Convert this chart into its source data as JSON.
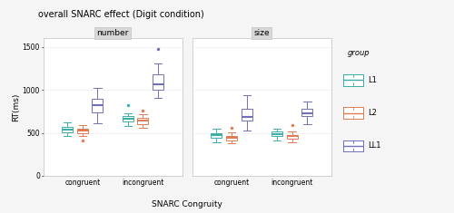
{
  "title": "overall SNARC effect (Digit condition)",
  "xlabel": "SNARC Congruity",
  "ylabel": "RT(ms)",
  "facets": [
    "number",
    "size"
  ],
  "x_groups": [
    "congruent",
    "incongruent"
  ],
  "groups": [
    "L1",
    "L2",
    "LL1"
  ],
  "colors": {
    "L1": "#3dada8",
    "L2": "#e07b54",
    "LL1": "#7070b8"
  },
  "ylim": [
    0,
    1600
  ],
  "yticks": [
    0,
    500,
    1000,
    1500
  ],
  "box_data": {
    "number": {
      "congruent": {
        "L1": {
          "q1": 505,
          "median": 535,
          "q3": 565,
          "whislo": 460,
          "whishi": 625,
          "fliers": []
        },
        "L2": {
          "q1": 495,
          "median": 525,
          "q3": 550,
          "whislo": 465,
          "whishi": 590,
          "fliers": [
            415
          ]
        },
        "LL1": {
          "q1": 735,
          "median": 820,
          "q3": 895,
          "whislo": 615,
          "whishi": 1020,
          "fliers": []
        }
      },
      "incongruent": {
        "L1": {
          "q1": 630,
          "median": 660,
          "q3": 695,
          "whislo": 575,
          "whishi": 730,
          "fliers": [
            820
          ]
        },
        "L2": {
          "q1": 605,
          "median": 645,
          "q3": 678,
          "whislo": 555,
          "whishi": 720,
          "fliers": [
            758
          ]
        },
        "LL1": {
          "q1": 1000,
          "median": 1070,
          "q3": 1185,
          "whislo": 910,
          "whishi": 1305,
          "fliers": [
            1480
          ]
        }
      }
    },
    "size": {
      "congruent": {
        "L1": {
          "q1": 445,
          "median": 475,
          "q3": 500,
          "whislo": 390,
          "whishi": 545,
          "fliers": []
        },
        "L2": {
          "q1": 415,
          "median": 445,
          "q3": 468,
          "whislo": 375,
          "whishi": 505,
          "fliers": [
            555
          ]
        },
        "LL1": {
          "q1": 645,
          "median": 685,
          "q3": 775,
          "whislo": 530,
          "whishi": 940,
          "fliers": []
        }
      },
      "incongruent": {
        "L1": {
          "q1": 458,
          "median": 488,
          "q3": 512,
          "whislo": 412,
          "whishi": 552,
          "fliers": []
        },
        "L2": {
          "q1": 432,
          "median": 458,
          "q3": 478,
          "whislo": 388,
          "whishi": 512,
          "fliers": [
            595
          ]
        },
        "LL1": {
          "q1": 695,
          "median": 730,
          "q3": 778,
          "whislo": 600,
          "whishi": 868,
          "fliers": []
        }
      }
    }
  },
  "facet_header_color": "#d8d8d8",
  "background_color": "#f5f5f5",
  "plot_bg": "#ffffff",
  "grid_color": "#e8e8e8",
  "spine_color": "#c0c0c0"
}
